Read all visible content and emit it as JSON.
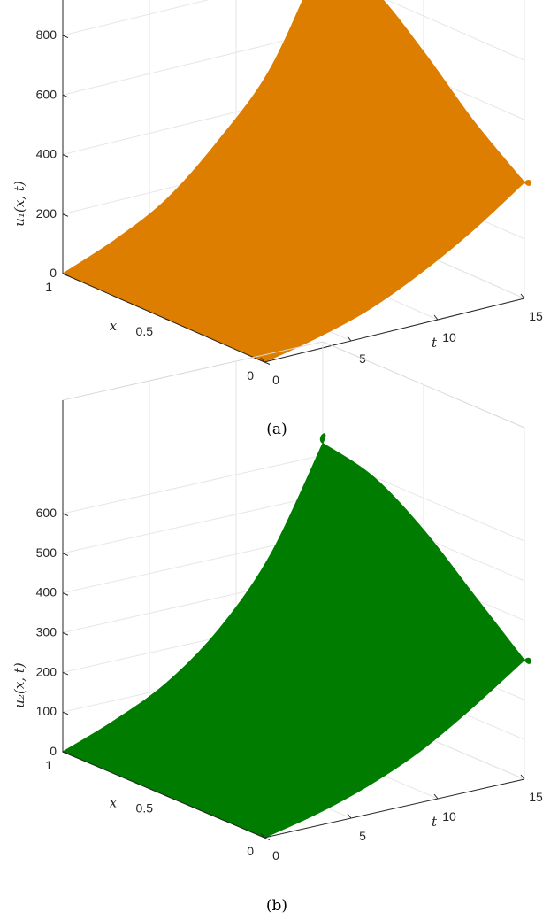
{
  "chart_data": [
    {
      "type": "surface",
      "caption": "(a)",
      "zlabel": "u₁(x, t)",
      "xlabel": "x",
      "tlabel": "t",
      "color": "#dd7e00",
      "zlim": [
        0,
        800
      ],
      "z_ticks": [
        "0",
        "200",
        "400",
        "600",
        "800"
      ],
      "x_ticks": [
        "0",
        "0.5",
        "1"
      ],
      "t_ticks": [
        "0",
        "5",
        "10",
        "15"
      ],
      "edges": {
        "t_at_x0": [
          [
            0,
            0
          ],
          [
            3,
            38
          ],
          [
            6,
            90
          ],
          [
            9,
            170
          ],
          [
            12,
            270
          ],
          [
            15,
            390
          ]
        ],
        "x_at_t15": [
          [
            0,
            390
          ],
          [
            0.25,
            520
          ],
          [
            0.5,
            680
          ],
          [
            0.75,
            815
          ],
          [
            1,
            860
          ]
        ],
        "t_at_x1": [
          [
            0,
            0
          ],
          [
            3,
            70
          ],
          [
            6,
            165
          ],
          [
            9,
            320
          ],
          [
            12,
            520
          ],
          [
            15,
            860
          ]
        ],
        "x_at_t0": [
          [
            0,
            0
          ],
          [
            1,
            0
          ]
        ]
      }
    },
    {
      "type": "surface",
      "caption": "(b)",
      "zlabel": "u₂(x, t)",
      "xlabel": "x",
      "tlabel": "t",
      "color": "#007d00",
      "zlim": [
        0,
        600
      ],
      "z_ticks": [
        "0",
        "100",
        "200",
        "300",
        "400",
        "500",
        "600"
      ],
      "x_ticks": [
        "0",
        "0.5",
        "1"
      ],
      "t_ticks": [
        "0",
        "5",
        "10",
        "15"
      ],
      "edges": {
        "t_at_x0": [
          [
            0,
            0
          ],
          [
            3,
            30
          ],
          [
            6,
            72
          ],
          [
            9,
            130
          ],
          [
            12,
            210
          ],
          [
            15,
            300
          ]
        ],
        "x_at_t15": [
          [
            0,
            300
          ],
          [
            0.25,
            410
          ],
          [
            0.5,
            520
          ],
          [
            0.75,
            600
          ],
          [
            1,
            630
          ]
        ],
        "t_at_x1": [
          [
            0,
            0
          ],
          [
            3,
            50
          ],
          [
            6,
            115
          ],
          [
            9,
            220
          ],
          [
            12,
            380
          ],
          [
            15,
            630
          ]
        ],
        "x_at_t0": [
          [
            0,
            0
          ],
          [
            1,
            0
          ]
        ]
      }
    }
  ]
}
